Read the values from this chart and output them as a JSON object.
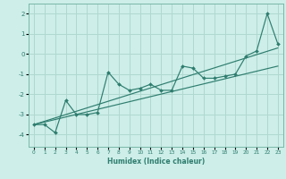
{
  "title": "",
  "xlabel": "Humidex (Indice chaleur)",
  "bg_color": "#cdeee9",
  "grid_color": "#b0d8d0",
  "line_color": "#2e7d6e",
  "xlim": [
    -0.5,
    23.5
  ],
  "ylim": [
    -4.6,
    2.5
  ],
  "xticks": [
    0,
    1,
    2,
    3,
    4,
    5,
    6,
    7,
    8,
    9,
    10,
    11,
    12,
    13,
    14,
    15,
    16,
    17,
    18,
    19,
    20,
    21,
    22,
    23
  ],
  "yticks": [
    -4,
    -3,
    -2,
    -1,
    0,
    1,
    2
  ],
  "zigzag_x": [
    0,
    1,
    2,
    3,
    4,
    5,
    6,
    7,
    8,
    9,
    10,
    11,
    12,
    13,
    14,
    15,
    16,
    17,
    18,
    19,
    20,
    21,
    22,
    23
  ],
  "zigzag_y": [
    -3.5,
    -3.5,
    -3.9,
    -2.3,
    -3.0,
    -3.0,
    -2.9,
    -0.9,
    -1.5,
    -1.8,
    -1.7,
    -1.5,
    -1.8,
    -1.8,
    -0.6,
    -0.7,
    -1.2,
    -1.2,
    -1.1,
    -1.0,
    -0.1,
    0.15,
    2.0,
    0.5
  ],
  "line1_x": [
    0,
    23
  ],
  "line1_y": [
    -3.5,
    0.3
  ],
  "line2_x": [
    0,
    23
  ],
  "line2_y": [
    -3.5,
    -0.6
  ]
}
